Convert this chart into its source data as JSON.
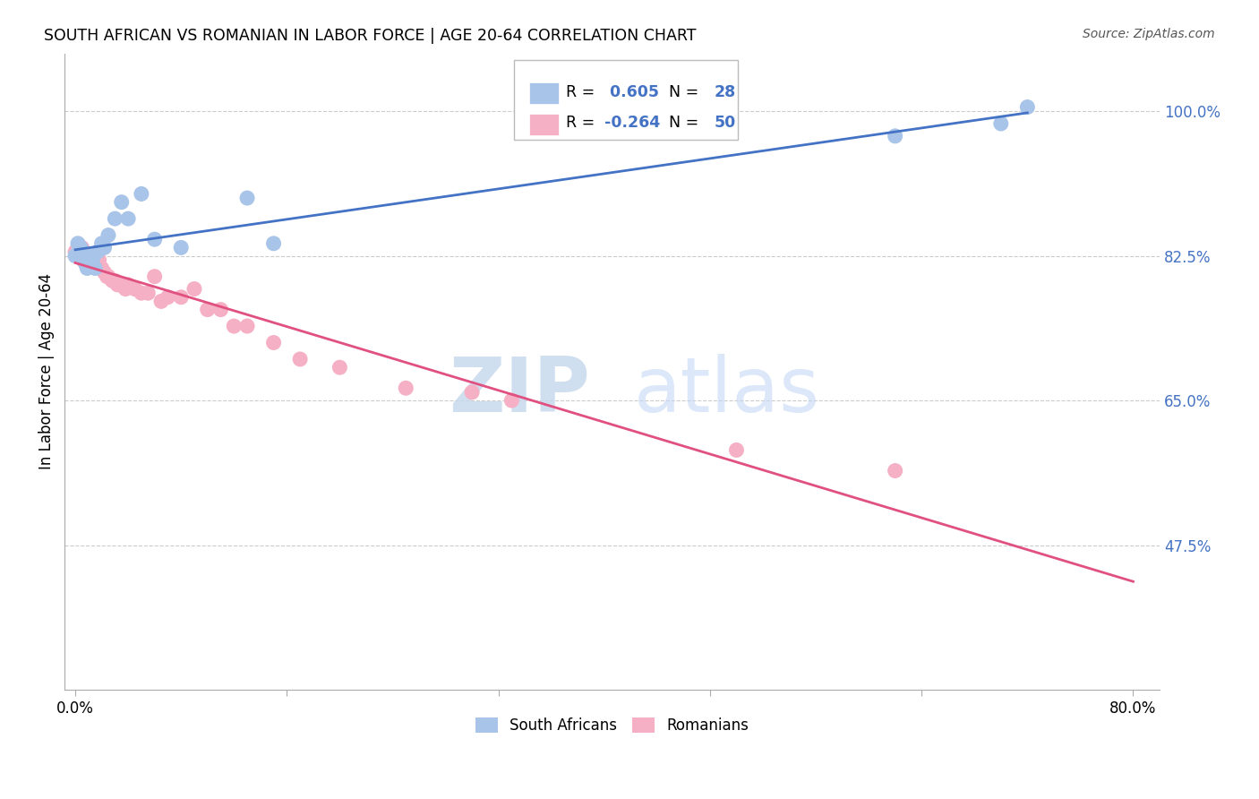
{
  "title": "SOUTH AFRICAN VS ROMANIAN IN LABOR FORCE | AGE 20-64 CORRELATION CHART",
  "source": "Source: ZipAtlas.com",
  "ylabel": "In Labor Force | Age 20-64",
  "xlim_min": -0.008,
  "xlim_max": 0.82,
  "ylim_min": 0.3,
  "ylim_max": 1.07,
  "ytick_vals": [
    0.475,
    0.65,
    0.825,
    1.0
  ],
  "ytick_labels": [
    "47.5%",
    "65.0%",
    "82.5%",
    "100.0%"
  ],
  "xtick_vals": [
    0.0,
    0.16,
    0.32,
    0.48,
    0.64,
    0.8
  ],
  "xtick_labels": [
    "0.0%",
    "",
    "",
    "",
    "",
    "80.0%"
  ],
  "sa_R": "0.605",
  "sa_N": "28",
  "ro_R": "-0.264",
  "ro_N": "50",
  "sa_color": "#a8c4e8",
  "ro_color": "#f5b0c5",
  "sa_line_color": "#4472c4",
  "ro_line_color": "#e05080",
  "legend_text_color": "#4472c4",
  "sa_points_x": [
    0.0,
    0.002,
    0.003,
    0.004,
    0.005,
    0.006,
    0.007,
    0.008,
    0.009,
    0.01,
    0.012,
    0.013,
    0.015,
    0.017,
    0.02,
    0.022,
    0.025,
    0.03,
    0.035,
    0.04,
    0.05,
    0.06,
    0.08,
    0.13,
    0.15,
    0.62,
    0.7,
    0.72
  ],
  "sa_points_y": [
    0.825,
    0.84,
    0.83,
    0.835,
    0.825,
    0.82,
    0.82,
    0.815,
    0.81,
    0.815,
    0.825,
    0.82,
    0.81,
    0.83,
    0.84,
    0.835,
    0.85,
    0.87,
    0.89,
    0.87,
    0.9,
    0.845,
    0.835,
    0.895,
    0.84,
    0.97,
    0.985,
    1.005
  ],
  "ro_points_x": [
    0.0,
    0.001,
    0.002,
    0.003,
    0.004,
    0.005,
    0.005,
    0.006,
    0.007,
    0.008,
    0.009,
    0.01,
    0.011,
    0.012,
    0.013,
    0.014,
    0.015,
    0.016,
    0.017,
    0.018,
    0.02,
    0.022,
    0.024,
    0.025,
    0.028,
    0.03,
    0.032,
    0.035,
    0.038,
    0.04,
    0.045,
    0.05,
    0.055,
    0.06,
    0.065,
    0.07,
    0.08,
    0.09,
    0.1,
    0.11,
    0.12,
    0.13,
    0.15,
    0.17,
    0.2,
    0.25,
    0.3,
    0.33,
    0.5,
    0.62
  ],
  "ro_points_y": [
    0.83,
    0.83,
    0.835,
    0.835,
    0.83,
    0.835,
    0.825,
    0.82,
    0.825,
    0.815,
    0.815,
    0.82,
    0.815,
    0.815,
    0.82,
    0.82,
    0.82,
    0.82,
    0.82,
    0.82,
    0.81,
    0.805,
    0.8,
    0.8,
    0.795,
    0.795,
    0.79,
    0.79,
    0.785,
    0.79,
    0.785,
    0.78,
    0.78,
    0.8,
    0.77,
    0.775,
    0.775,
    0.785,
    0.76,
    0.76,
    0.74,
    0.74,
    0.72,
    0.7,
    0.69,
    0.665,
    0.66,
    0.65,
    0.59,
    0.565
  ],
  "watermark_zip_color": "#c5d8ec",
  "watermark_atlas_color": "#c5d8f5"
}
